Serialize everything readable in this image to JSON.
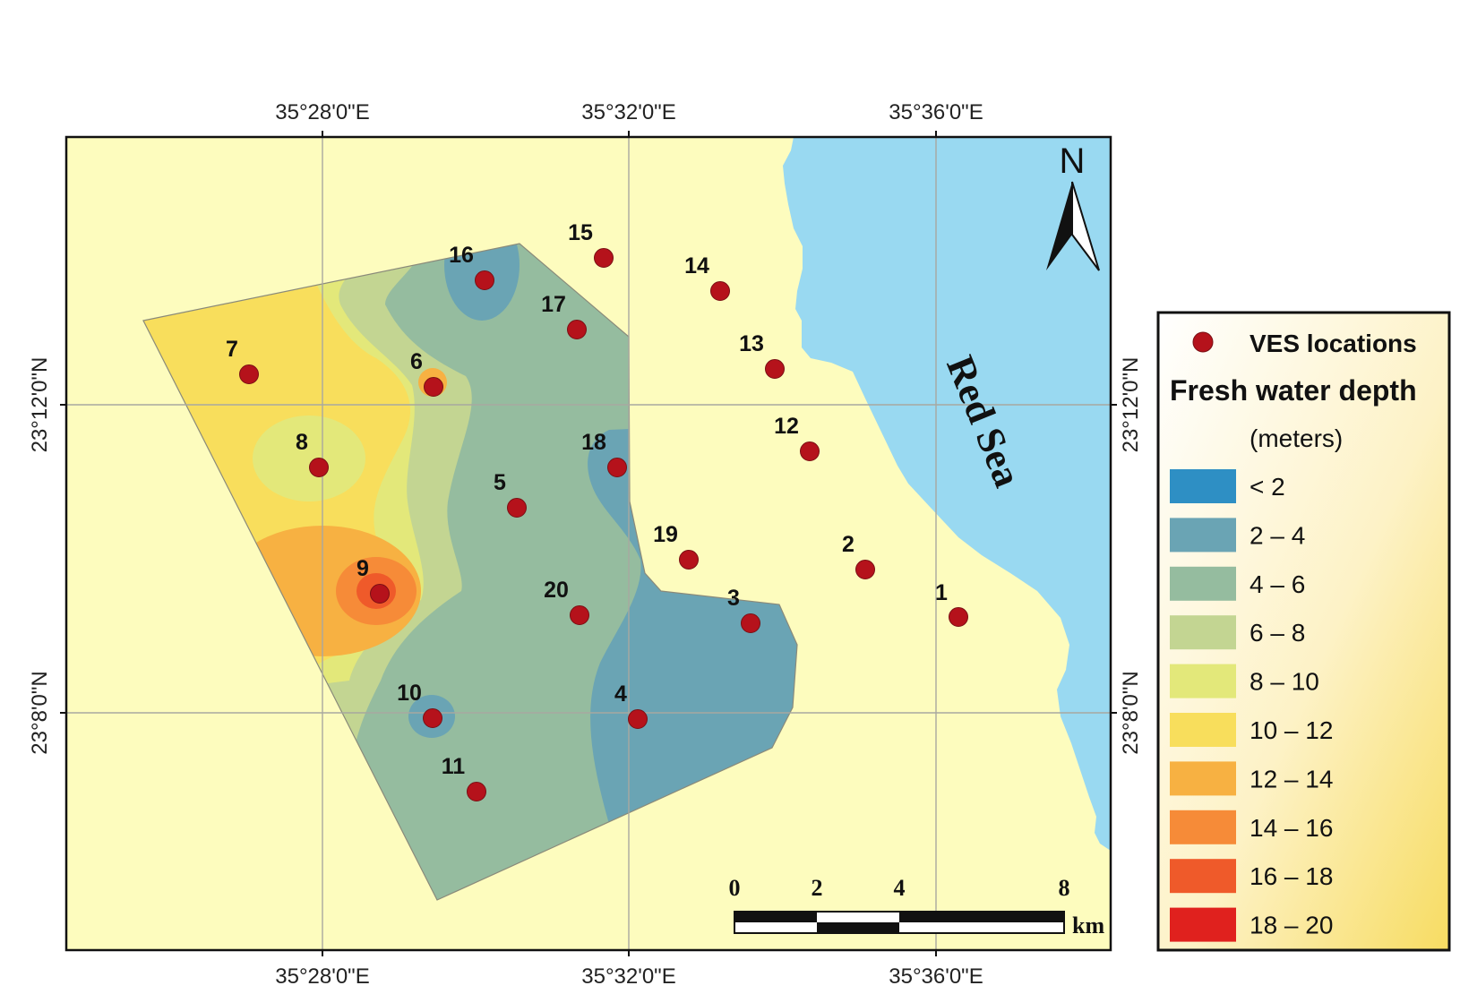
{
  "map": {
    "sea_label": "Red Sea",
    "north_label": "N",
    "top_ticks": [
      "35°28'0\"E",
      "35°32'0\"E",
      "35°36'0\"E"
    ],
    "bottom_ticks": [
      "35°28'0\"E",
      "35°32'0\"E",
      "35°36'0\"E"
    ],
    "left_ticks": [
      "23°12'0\"N",
      "23°8'0\"N"
    ],
    "right_ticks": [
      "23°12'0\"N",
      "23°8'0\"N"
    ],
    "scale": {
      "labels": [
        "0",
        "2",
        "4",
        "8"
      ],
      "unit": "km"
    },
    "ves_points": [
      "1",
      "2",
      "3",
      "4",
      "5",
      "6",
      "7",
      "8",
      "9",
      "10",
      "11",
      "12",
      "13",
      "14",
      "15",
      "16",
      "17",
      "18",
      "19",
      "20"
    ]
  },
  "legend": {
    "ves_label": "VES locations",
    "title": "Fresh water depth",
    "subtitle": "(meters)",
    "classes": [
      {
        "label": "< 2",
        "color": "#2E8FC4"
      },
      {
        "label": "2 – 4",
        "color": "#6AA4B4"
      },
      {
        "label": "4 – 6",
        "color": "#95BC9F"
      },
      {
        "label": "6 – 8",
        "color": "#C3D592"
      },
      {
        "label": "8 – 10",
        "color": "#E3E87A"
      },
      {
        "label": "10 – 12",
        "color": "#F8DE5C"
      },
      {
        "label": "12 – 14",
        "color": "#F7B142"
      },
      {
        "label": "14 – 16",
        "color": "#F68B38"
      },
      {
        "label": "16 – 18",
        "color": "#EF5A2A"
      },
      {
        "label": "18 – 20",
        "color": "#E0211E"
      }
    ]
  },
  "colors": {
    "land": "#FDFCBE",
    "sea": "#99D9F1",
    "ves_point": "#B5121B"
  }
}
